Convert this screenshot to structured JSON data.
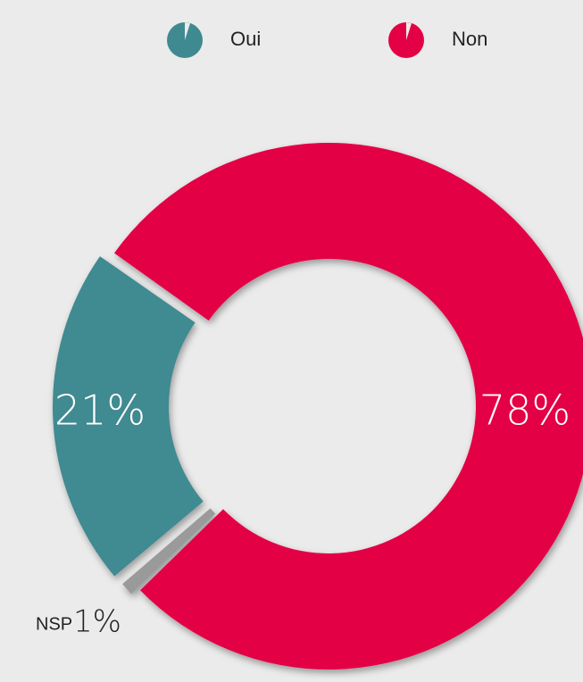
{
  "chart_data": {
    "type": "donut",
    "categories": [
      "Oui",
      "Non",
      "NSP"
    ],
    "values": [
      21,
      78,
      1
    ],
    "value_labels": [
      "21%",
      "78%",
      "1%"
    ],
    "colors": [
      "#3f8a91",
      "#e30045",
      "#9a9a9a"
    ],
    "legend": [
      "Oui",
      "Non"
    ]
  }
}
